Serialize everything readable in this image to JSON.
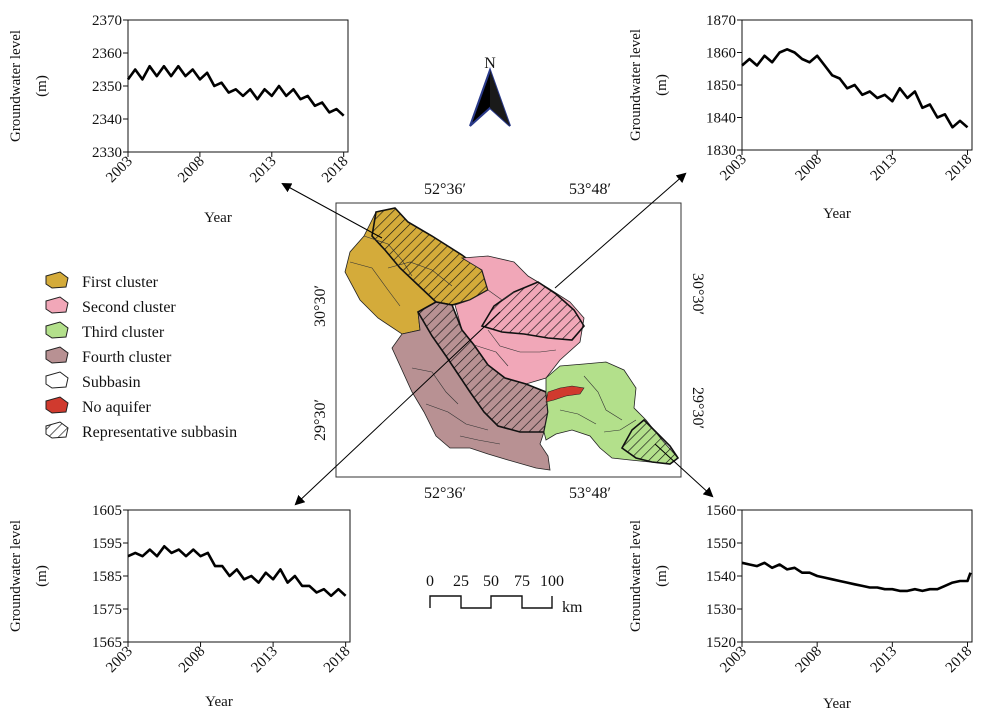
{
  "chart_data": [
    {
      "type": "line",
      "ylabel": "Groundwater level (m)",
      "ylabel_lines": [
        "Groundwater level",
        "(m)"
      ],
      "xlabel": "Year",
      "xlim": [
        2003,
        2018.3
      ],
      "ylim": [
        2330,
        2370
      ],
      "x_ticks": [
        "2003",
        "2008",
        "2013",
        "2018"
      ],
      "y_ticks": [
        "2330",
        "2340",
        "2350",
        "2360",
        "2370"
      ],
      "series": [
        {
          "x": [
            2003,
            2003.5,
            2004,
            2004.5,
            2005,
            2005.5,
            2006,
            2006.5,
            2007,
            2007.5,
            2008,
            2008.5,
            2009,
            2009.5,
            2010,
            2010.5,
            2011,
            2011.5,
            2012,
            2012.5,
            2013,
            2013.5,
            2014,
            2014.5,
            2015,
            2015.5,
            2016,
            2016.5,
            2017,
            2017.5,
            2018
          ],
          "y": [
            2352,
            2355,
            2352,
            2356,
            2353,
            2356,
            2353,
            2356,
            2353,
            2355,
            2352,
            2354,
            2350,
            2351,
            2348,
            2349,
            2347,
            2349,
            2346,
            2349,
            2347,
            2350,
            2347,
            2349,
            2346,
            2347,
            2344,
            2345,
            2342,
            2343,
            2341
          ]
        }
      ]
    },
    {
      "type": "line",
      "ylabel": "Groundwater level (m)",
      "ylabel_lines": [
        "Groundwater level",
        "(m)"
      ],
      "xlabel": "Year",
      "xlim": [
        2003,
        2018.3
      ],
      "ylim": [
        1830,
        1870
      ],
      "x_ticks": [
        "2003",
        "2008",
        "2013",
        "2018"
      ],
      "y_ticks": [
        "1830",
        "1840",
        "1850",
        "1860",
        "1870"
      ],
      "series": [
        {
          "x": [
            2003,
            2003.5,
            2004,
            2004.5,
            2005,
            2005.5,
            2006,
            2006.5,
            2007,
            2007.5,
            2008,
            2008.5,
            2009,
            2009.5,
            2010,
            2010.5,
            2011,
            2011.5,
            2012,
            2012.5,
            2013,
            2013.5,
            2014,
            2014.5,
            2015,
            2015.5,
            2016,
            2016.5,
            2017,
            2017.5,
            2018
          ],
          "y": [
            1856,
            1858,
            1856,
            1859,
            1857,
            1860,
            1861,
            1860,
            1858,
            1857,
            1859,
            1856,
            1853,
            1852,
            1849,
            1850,
            1847,
            1848,
            1846,
            1847,
            1845,
            1849,
            1846,
            1848,
            1843,
            1844,
            1840,
            1841,
            1837,
            1839,
            1837
          ]
        }
      ]
    },
    {
      "type": "line",
      "ylabel": "Groundwater level (m)",
      "ylabel_lines": [
        "Groundwater level",
        "(m)"
      ],
      "xlabel": "Year",
      "xlim": [
        2003,
        2018.3
      ],
      "ylim": [
        1565,
        1605
      ],
      "x_ticks": [
        "2003",
        "2008",
        "2013",
        "2018"
      ],
      "y_ticks": [
        "1565",
        "1575",
        "1585",
        "1595",
        "1605"
      ],
      "series": [
        {
          "x": [
            2003,
            2003.5,
            2004,
            2004.5,
            2005,
            2005.5,
            2006,
            2006.5,
            2007,
            2007.5,
            2008,
            2008.5,
            2009,
            2009.5,
            2010,
            2010.5,
            2011,
            2011.5,
            2012,
            2012.5,
            2013,
            2013.5,
            2014,
            2014.5,
            2015,
            2015.5,
            2016,
            2016.5,
            2017,
            2017.5,
            2018
          ],
          "y": [
            1591,
            1592,
            1591,
            1593,
            1591,
            1594,
            1592,
            1593,
            1591,
            1593,
            1591,
            1592,
            1588,
            1588,
            1585,
            1587,
            1584,
            1585,
            1583,
            1586,
            1584,
            1587,
            1583,
            1585,
            1582,
            1582,
            1580,
            1581,
            1579,
            1581,
            1579
          ]
        }
      ]
    },
    {
      "type": "line",
      "ylabel": "Groundwater level (m)",
      "ylabel_lines": [
        "Groundwater level",
        "(m)"
      ],
      "xlabel": "Year",
      "xlim": [
        2003,
        2018.3
      ],
      "ylim": [
        1520,
        1560
      ],
      "x_ticks": [
        "2003",
        "2008",
        "2013",
        "2018"
      ],
      "y_ticks": [
        "1520",
        "1530",
        "1540",
        "1550",
        "1560"
      ],
      "series": [
        {
          "x": [
            2003,
            2003.5,
            2004,
            2004.5,
            2005,
            2005.5,
            2006,
            2006.5,
            2007,
            2007.5,
            2008,
            2008.5,
            2009,
            2009.5,
            2010,
            2010.5,
            2011,
            2011.5,
            2012,
            2012.5,
            2013,
            2013.5,
            2014,
            2014.5,
            2015,
            2015.5,
            2016,
            2016.5,
            2017,
            2017.5,
            2018,
            2018.2
          ],
          "y": [
            1544,
            1543.5,
            1543,
            1544,
            1542.5,
            1543.5,
            1542,
            1542.5,
            1541,
            1541,
            1540,
            1539.5,
            1539,
            1538.5,
            1538,
            1537.5,
            1537,
            1536.5,
            1536.5,
            1536,
            1536,
            1535.5,
            1535.5,
            1536,
            1535.5,
            1536,
            1536,
            1537,
            1538,
            1538.5,
            1538.5,
            1541
          ]
        }
      ]
    }
  ],
  "map": {
    "north_label": "N",
    "coords": {
      "top_left": "52°36′",
      "top_right": "53°48′",
      "bottom_left": "52°36′",
      "bottom_right": "53°48′",
      "left_upper": "30°30′",
      "left_lower": "29°30′",
      "right_upper": "30°30′",
      "right_lower": "29°30′"
    },
    "scale_bar": {
      "ticks": [
        "0",
        "25",
        "50",
        "75",
        "100"
      ],
      "unit": "km"
    }
  },
  "legend": {
    "items": [
      {
        "label": "First cluster",
        "color": "#d4ab3a",
        "type": "fill"
      },
      {
        "label": "Second cluster",
        "color": "#f1a7b8",
        "type": "fill"
      },
      {
        "label": "Third cluster",
        "color": "#b3e08b",
        "type": "fill"
      },
      {
        "label": "Fourth cluster",
        "color": "#b89193",
        "type": "fill"
      },
      {
        "label": "Subbasin",
        "color": "#ffffff",
        "type": "outline"
      },
      {
        "label": "No aquifer",
        "color": "#d03a2e",
        "type": "fill"
      },
      {
        "label": "Representative subbasin",
        "color": "#ffffff",
        "type": "hatch"
      }
    ]
  }
}
